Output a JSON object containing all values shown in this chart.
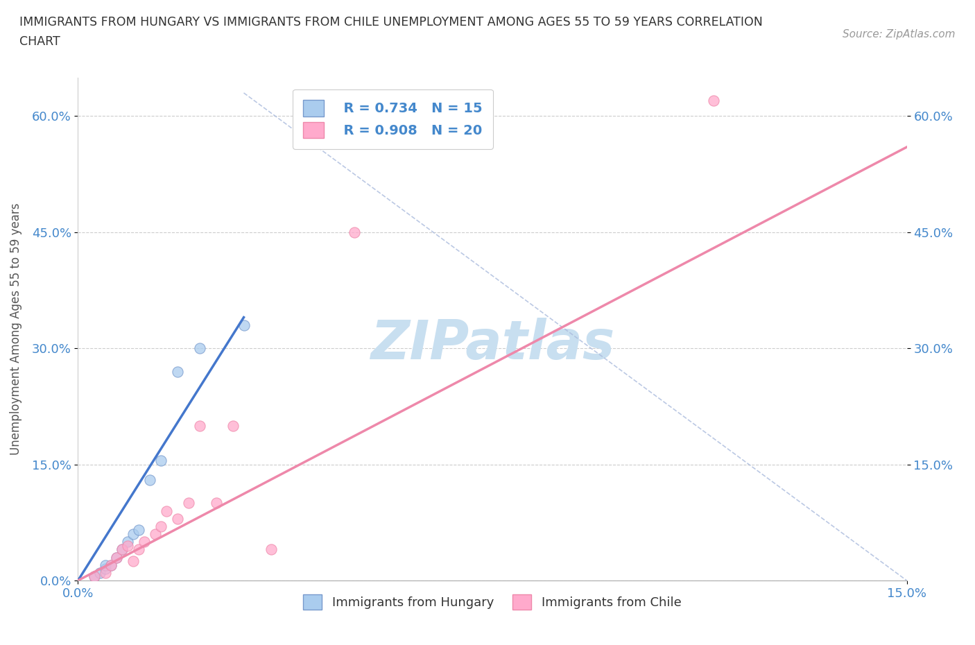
{
  "title_line1": "IMMIGRANTS FROM HUNGARY VS IMMIGRANTS FROM CHILE UNEMPLOYMENT AMONG AGES 55 TO 59 YEARS CORRELATION",
  "title_line2": "CHART",
  "source": "Source: ZipAtlas.com",
  "ylabel": "Unemployment Among Ages 55 to 59 years",
  "xlim": [
    0.0,
    0.15
  ],
  "ylim": [
    0.0,
    0.65
  ],
  "xtick_positions": [
    0.0,
    0.15
  ],
  "xtick_labels": [
    "0.0%",
    "15.0%"
  ],
  "ytick_positions": [
    0.0,
    0.15,
    0.3,
    0.45,
    0.6
  ],
  "ytick_labels": [
    "0.0%",
    "15.0%",
    "30.0%",
    "45.0%",
    "60.0%"
  ],
  "grid_color": "#cccccc",
  "grid_style": "--",
  "background_color": "#ffffff",
  "watermark_text": "ZIPatlas",
  "watermark_color": "#c8dff0",
  "hungary_color": "#aaccee",
  "chile_color": "#ffaacc",
  "hungary_edge_color": "#7799cc",
  "chile_edge_color": "#ee88aa",
  "hungary_line_color": "#4477cc",
  "chile_line_color": "#ee88aa",
  "legend_hungary_R": "R = 0.734",
  "legend_hungary_N": "N = 15",
  "legend_chile_R": "R = 0.908",
  "legend_chile_N": "N = 20",
  "hungary_scatter_x": [
    0.003,
    0.004,
    0.005,
    0.005,
    0.006,
    0.007,
    0.008,
    0.009,
    0.01,
    0.011,
    0.013,
    0.015,
    0.018,
    0.022,
    0.03
  ],
  "hungary_scatter_y": [
    0.005,
    0.01,
    0.015,
    0.02,
    0.02,
    0.03,
    0.04,
    0.05,
    0.06,
    0.065,
    0.13,
    0.155,
    0.27,
    0.3,
    0.33
  ],
  "chile_scatter_x": [
    0.003,
    0.005,
    0.006,
    0.007,
    0.008,
    0.009,
    0.01,
    0.011,
    0.012,
    0.014,
    0.015,
    0.016,
    0.018,
    0.02,
    0.022,
    0.025,
    0.028,
    0.035,
    0.05,
    0.115
  ],
  "chile_scatter_y": [
    0.005,
    0.01,
    0.02,
    0.03,
    0.04,
    0.045,
    0.025,
    0.04,
    0.05,
    0.06,
    0.07,
    0.09,
    0.08,
    0.1,
    0.2,
    0.1,
    0.2,
    0.04,
    0.45,
    0.62
  ],
  "hungary_line_x": [
    0.0,
    0.03
  ],
  "hungary_line_y": [
    0.0,
    0.34
  ],
  "chile_line_x": [
    0.0,
    0.15
  ],
  "chile_line_y": [
    0.0,
    0.56
  ],
  "diag_line_color": "#aabbdd",
  "diag_line_x": [
    0.03,
    0.15
  ],
  "diag_line_y": [
    0.63,
    0.0
  ]
}
